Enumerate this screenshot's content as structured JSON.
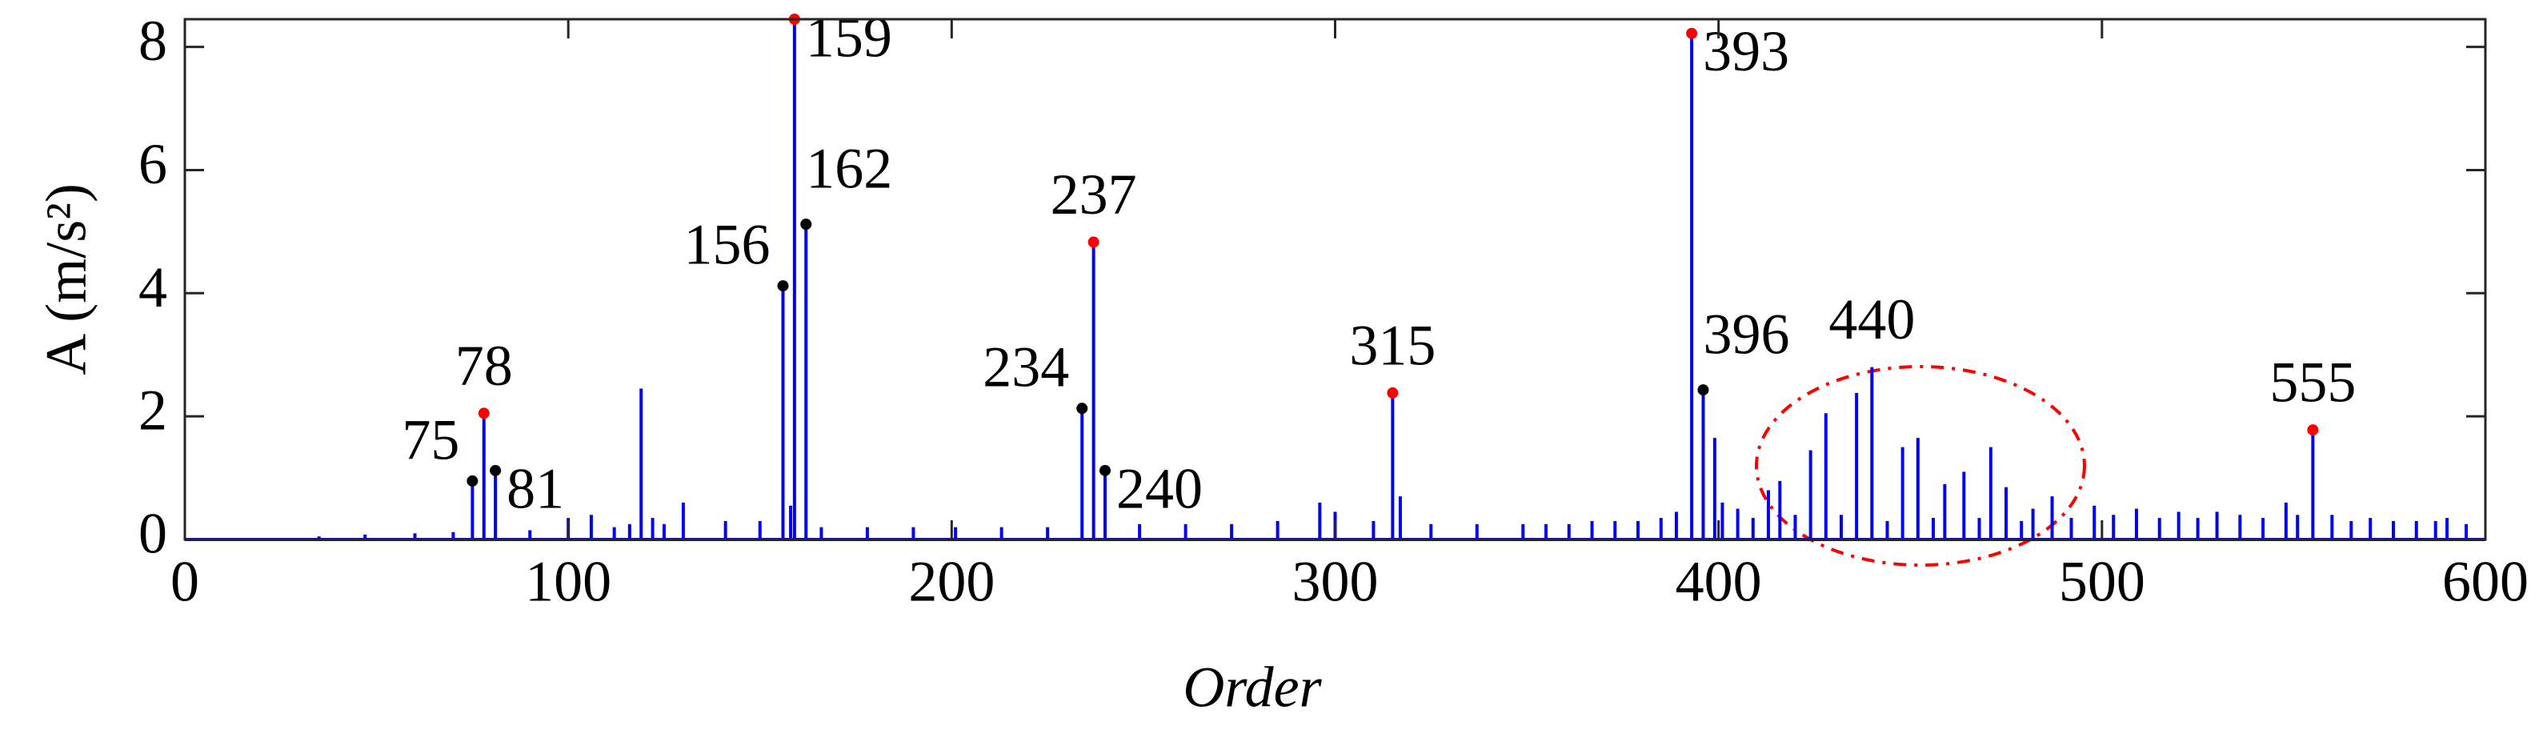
{
  "chart_data": {
    "type": "stem",
    "xlabel": "Order",
    "ylabel": "A (m/s²)",
    "xlim": [
      0,
      600
    ],
    "ylim": [
      0,
      8.45
    ],
    "xticks": [
      0,
      100,
      200,
      300,
      400,
      500,
      600
    ],
    "yticks": [
      0,
      2,
      4,
      6,
      8
    ],
    "color": "#0000ff",
    "x": [
      35,
      47,
      60,
      70,
      75,
      78,
      81,
      90,
      100,
      106,
      112,
      116,
      119,
      122,
      125,
      130,
      141,
      150,
      156,
      158,
      159,
      162,
      166,
      178,
      190,
      201,
      213,
      225,
      234,
      237,
      240,
      249,
      261,
      273,
      285,
      296,
      300,
      310,
      315,
      317,
      325,
      337,
      349,
      355,
      361,
      367,
      373,
      379,
      385,
      389,
      393,
      396,
      399,
      401,
      405,
      409,
      413,
      416,
      420,
      424,
      428,
      432,
      436,
      440,
      444,
      448,
      452,
      456,
      459,
      464,
      468,
      471,
      475,
      479,
      482,
      487,
      492,
      498,
      503,
      509,
      515,
      520,
      525,
      530,
      536,
      542,
      548,
      551,
      555,
      560,
      565,
      570,
      576,
      582,
      587,
      590,
      595
    ],
    "values": [
      0.05,
      0.08,
      0.1,
      0.12,
      0.95,
      2.05,
      1.12,
      0.15,
      0.35,
      0.4,
      0.2,
      0.25,
      2.45,
      0.35,
      0.25,
      0.6,
      0.3,
      0.3,
      4.12,
      0.55,
      8.45,
      5.12,
      0.2,
      0.2,
      0.2,
      0.2,
      0.2,
      0.2,
      2.13,
      4.83,
      1.12,
      0.25,
      0.25,
      0.25,
      0.3,
      0.6,
      0.45,
      0.3,
      2.38,
      0.7,
      0.25,
      0.25,
      0.25,
      0.25,
      0.25,
      0.3,
      0.3,
      0.3,
      0.35,
      0.45,
      8.22,
      2.43,
      1.65,
      0.6,
      0.5,
      0.35,
      0.8,
      0.95,
      0.4,
      1.45,
      2.05,
      0.4,
      2.38,
      2.8,
      0.3,
      1.5,
      1.65,
      0.35,
      0.9,
      1.1,
      0.35,
      1.5,
      0.85,
      0.3,
      0.5,
      0.7,
      0.35,
      0.55,
      0.4,
      0.5,
      0.35,
      0.45,
      0.35,
      0.45,
      0.4,
      0.35,
      0.6,
      0.4,
      1.78,
      0.4,
      0.3,
      0.35,
      0.3,
      0.3,
      0.3,
      0.35,
      0.25
    ],
    "peaks": [
      {
        "x": 75,
        "y": 0.95,
        "color": "#000000",
        "position": "left"
      },
      {
        "x": 78,
        "y": 2.05,
        "color": "#ff0000",
        "position": "above"
      },
      {
        "x": 81,
        "y": 1.12,
        "color": "#000000",
        "position": "right"
      },
      {
        "x": 156,
        "y": 4.12,
        "color": "#000000",
        "position": "left"
      },
      {
        "x": 159,
        "y": 8.45,
        "color": "#ff0000",
        "position": "right"
      },
      {
        "x": 162,
        "y": 5.12,
        "color": "#000000",
        "position": "above-right"
      },
      {
        "x": 234,
        "y": 2.13,
        "color": "#000000",
        "position": "left"
      },
      {
        "x": 237,
        "y": 4.83,
        "color": "#ff0000",
        "position": "above"
      },
      {
        "x": 240,
        "y": 1.12,
        "color": "#000000",
        "position": "right"
      },
      {
        "x": 315,
        "y": 2.38,
        "color": "#ff0000",
        "position": "above"
      },
      {
        "x": 393,
        "y": 8.22,
        "color": "#ff0000",
        "position": "right"
      },
      {
        "x": 396,
        "y": 2.43,
        "color": "#000000",
        "position": "above-right"
      },
      {
        "x": 440,
        "y": 2.8,
        "color": null,
        "position": "above"
      },
      {
        "x": 555,
        "y": 1.78,
        "color": "#ff0000",
        "position": "above"
      }
    ]
  }
}
